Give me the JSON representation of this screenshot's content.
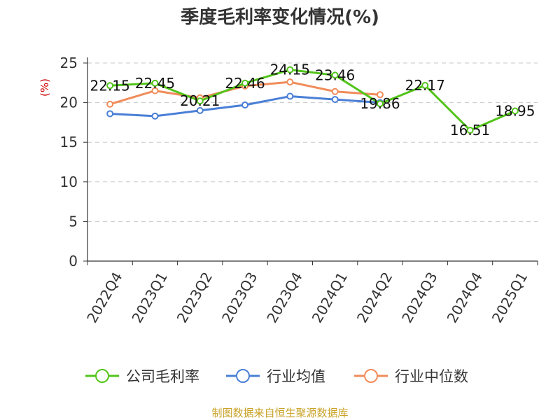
{
  "chart_data": {
    "type": "line",
    "title": "季度毛利率变化情况(%)",
    "unit_label": "(%)",
    "categories": [
      "2022Q4",
      "2023Q1",
      "2023Q2",
      "2023Q3",
      "2023Q4",
      "2024Q1",
      "2024Q2",
      "2024Q3",
      "2024Q4",
      "2025Q1"
    ],
    "ylim": [
      0,
      25
    ],
    "yticks": [
      0,
      5,
      10,
      15,
      20,
      25
    ],
    "grid": true,
    "legend_position": "bottom",
    "series": [
      {
        "name": "公司毛利率",
        "color": "#52c41a",
        "values": [
          22.15,
          22.45,
          20.21,
          22.46,
          24.15,
          23.46,
          19.86,
          22.17,
          16.51,
          18.95
        ],
        "labels": [
          "22.15",
          "22.45",
          "20.21",
          "22.46",
          "24.15",
          "23.46",
          "19.86",
          "22.17",
          "16.51",
          "18.95"
        ]
      },
      {
        "name": "行业均值",
        "color": "#4a7fd6",
        "values": [
          18.6,
          18.3,
          19.0,
          19.7,
          20.8,
          20.4,
          20.0,
          null,
          null,
          null
        ]
      },
      {
        "name": "行业中位数",
        "color": "#f08c5a",
        "values": [
          19.8,
          21.5,
          20.6,
          22.1,
          22.6,
          21.4,
          21.0,
          null,
          null,
          null
        ]
      }
    ],
    "source": "制图数据来自恒生聚源数据库"
  }
}
